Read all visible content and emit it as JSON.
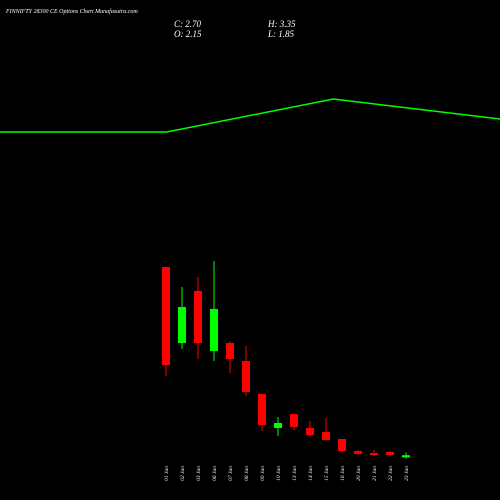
{
  "chart_data": {
    "type": "candlestick",
    "title": "FINNIFTY 28300 CE Options Chart Munafasutra.com",
    "stats": {
      "close": "C: 2.70",
      "high": "H: 3.35",
      "open": "O: 2.15",
      "low": "L: 1.85"
    },
    "categories": [
      "01 Jan",
      "02 Jan",
      "03 Jan",
      "06 Jan",
      "07 Jan",
      "08 Jan",
      "09 Jan",
      "10 Jan",
      "13 Jan",
      "14 Jan",
      "15 Jan",
      "16 Jan",
      "20 Jan",
      "21 Jan",
      "22 Jan",
      "23 Jan"
    ],
    "open": [
      49.75,
      30.75,
      43.75,
      28.75,
      30.75,
      26.25,
      18,
      9.5,
      13,
      9.5,
      8.5,
      6.75,
      3.75,
      3.25,
      3.5,
      2.15
    ],
    "high": [
      49.75,
      44.75,
      47.25,
      51.25,
      31.25,
      30,
      18,
      12.25,
      13,
      11.25,
      12,
      6.75,
      4,
      4,
      3.75,
      3.35
    ],
    "low": [
      22.5,
      29.25,
      26.75,
      26.25,
      23.25,
      17.5,
      8.75,
      7.5,
      9,
      7.5,
      6.25,
      3.5,
      2.75,
      2.5,
      2.5,
      1.85
    ],
    "close": [
      25.25,
      39.75,
      30.75,
      39.25,
      26.75,
      18.5,
      10.25,
      10.75,
      9.75,
      7.75,
      6.5,
      3.75,
      3,
      2.75,
      2.75,
      2.7
    ],
    "up_color": "#00ff00",
    "down_color": "#ff0000",
    "ylim": [
      0,
      101.5
    ],
    "overlay_line": {
      "color": "#00ff00",
      "values": [
        83.5,
        83.5,
        91.75,
        86.75
      ]
    }
  }
}
